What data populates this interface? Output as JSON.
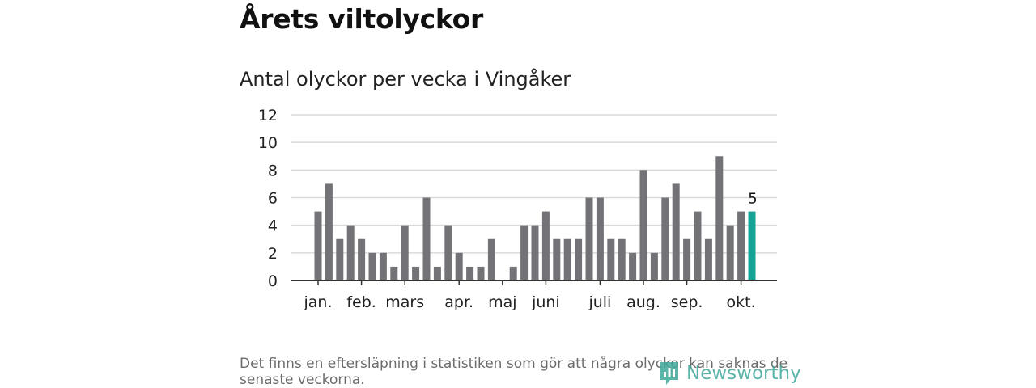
{
  "title": "Årets viltolyckor",
  "subtitle": "Antal olyckor per vecka i Vingåker",
  "footnote": "Det finns en eftersläpning i statistiken som gör att några olyckor kan saknas de senaste veckorna.",
  "logo": {
    "text": "Newsworthy",
    "icon": "newsworthy-logo-icon",
    "color": "#3fa79a"
  },
  "chart_data": {
    "type": "bar",
    "values": [
      5,
      7,
      3,
      4,
      3,
      2,
      2,
      1,
      4,
      1,
      6,
      1,
      4,
      2,
      1,
      1,
      3,
      0,
      1,
      4,
      4,
      5,
      3,
      3,
      3,
      6,
      6,
      3,
      3,
      2,
      8,
      2,
      6,
      7,
      3,
      5,
      3,
      9,
      4,
      5,
      5
    ],
    "ylim": [
      0,
      12
    ],
    "yticks": [
      0,
      2,
      4,
      6,
      8,
      10,
      12
    ],
    "month_labels": [
      {
        "label": "jan.",
        "week_index": 0
      },
      {
        "label": "feb.",
        "week_index": 4
      },
      {
        "label": "mars",
        "week_index": 8
      },
      {
        "label": "apr.",
        "week_index": 13
      },
      {
        "label": "maj",
        "week_index": 17
      },
      {
        "label": "juni",
        "week_index": 21
      },
      {
        "label": "juli",
        "week_index": 26
      },
      {
        "label": "aug.",
        "week_index": 30
      },
      {
        "label": "sep.",
        "week_index": 34
      },
      {
        "label": "okt.",
        "week_index": 39
      }
    ],
    "highlight_index": 40,
    "highlight_label": "5",
    "grid": true,
    "bar_color": "#737277",
    "highlight_color": "#12a394",
    "grid_color": "#d9d9d9",
    "axis_color": "#333333"
  }
}
